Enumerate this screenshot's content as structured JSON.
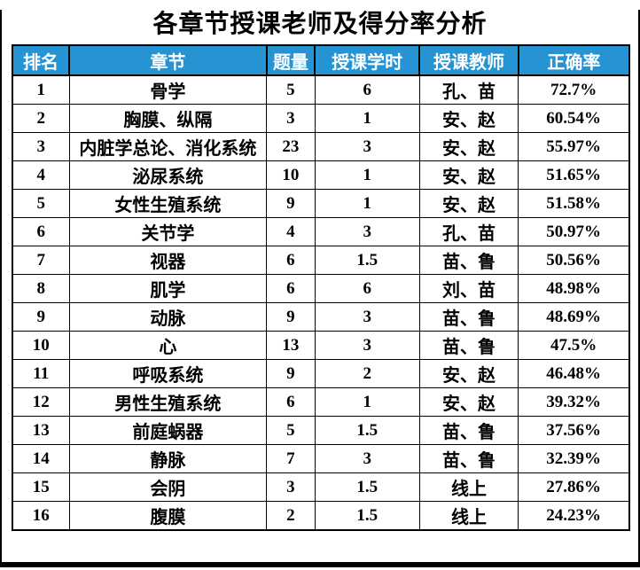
{
  "title": "各章节授课老师及得分率分析",
  "table": {
    "headers": [
      "排名",
      "章节",
      "题量",
      "授课学时",
      "授课教师",
      "正确率"
    ],
    "rows": [
      [
        "1",
        "骨学",
        "5",
        "6",
        "孔、苗",
        "72.7%"
      ],
      [
        "2",
        "胸膜、纵隔",
        "3",
        "1",
        "安、赵",
        "60.54%"
      ],
      [
        "3",
        "内脏学总论、消化系统",
        "23",
        "3",
        "安、赵",
        "55.97%"
      ],
      [
        "4",
        "泌尿系统",
        "10",
        "1",
        "安、赵",
        "51.65%"
      ],
      [
        "5",
        "女性生殖系统",
        "9",
        "1",
        "安、赵",
        "51.58%"
      ],
      [
        "6",
        "关节学",
        "4",
        "3",
        "孔、苗",
        "50.97%"
      ],
      [
        "7",
        "视器",
        "6",
        "1.5",
        "苗、鲁",
        "50.56%"
      ],
      [
        "8",
        "肌学",
        "6",
        "6",
        "刘、苗",
        "48.98%"
      ],
      [
        "9",
        "动脉",
        "9",
        "3",
        "苗、鲁",
        "48.69%"
      ],
      [
        "10",
        "心",
        "13",
        "3",
        "苗、鲁",
        "47.5%"
      ],
      [
        "11",
        "呼吸系统",
        "9",
        "2",
        "安、赵",
        "46.48%"
      ],
      [
        "12",
        "男性生殖系统",
        "6",
        "1",
        "安、赵",
        "39.32%"
      ],
      [
        "13",
        "前庭蜗器",
        "5",
        "1.5",
        "苗、鲁",
        "37.56%"
      ],
      [
        "14",
        "静脉",
        "7",
        "3",
        "苗、鲁",
        "32.39%"
      ],
      [
        "15",
        "会阴",
        "3",
        "1.5",
        "线上",
        "27.86%"
      ],
      [
        "16",
        "腹膜",
        "2",
        "1.5",
        "线上",
        "24.23%"
      ]
    ]
  },
  "colors": {
    "header_bg": "#2693D2",
    "header_text": "#FFFFFF",
    "border": "#000000",
    "text": "#000000"
  }
}
